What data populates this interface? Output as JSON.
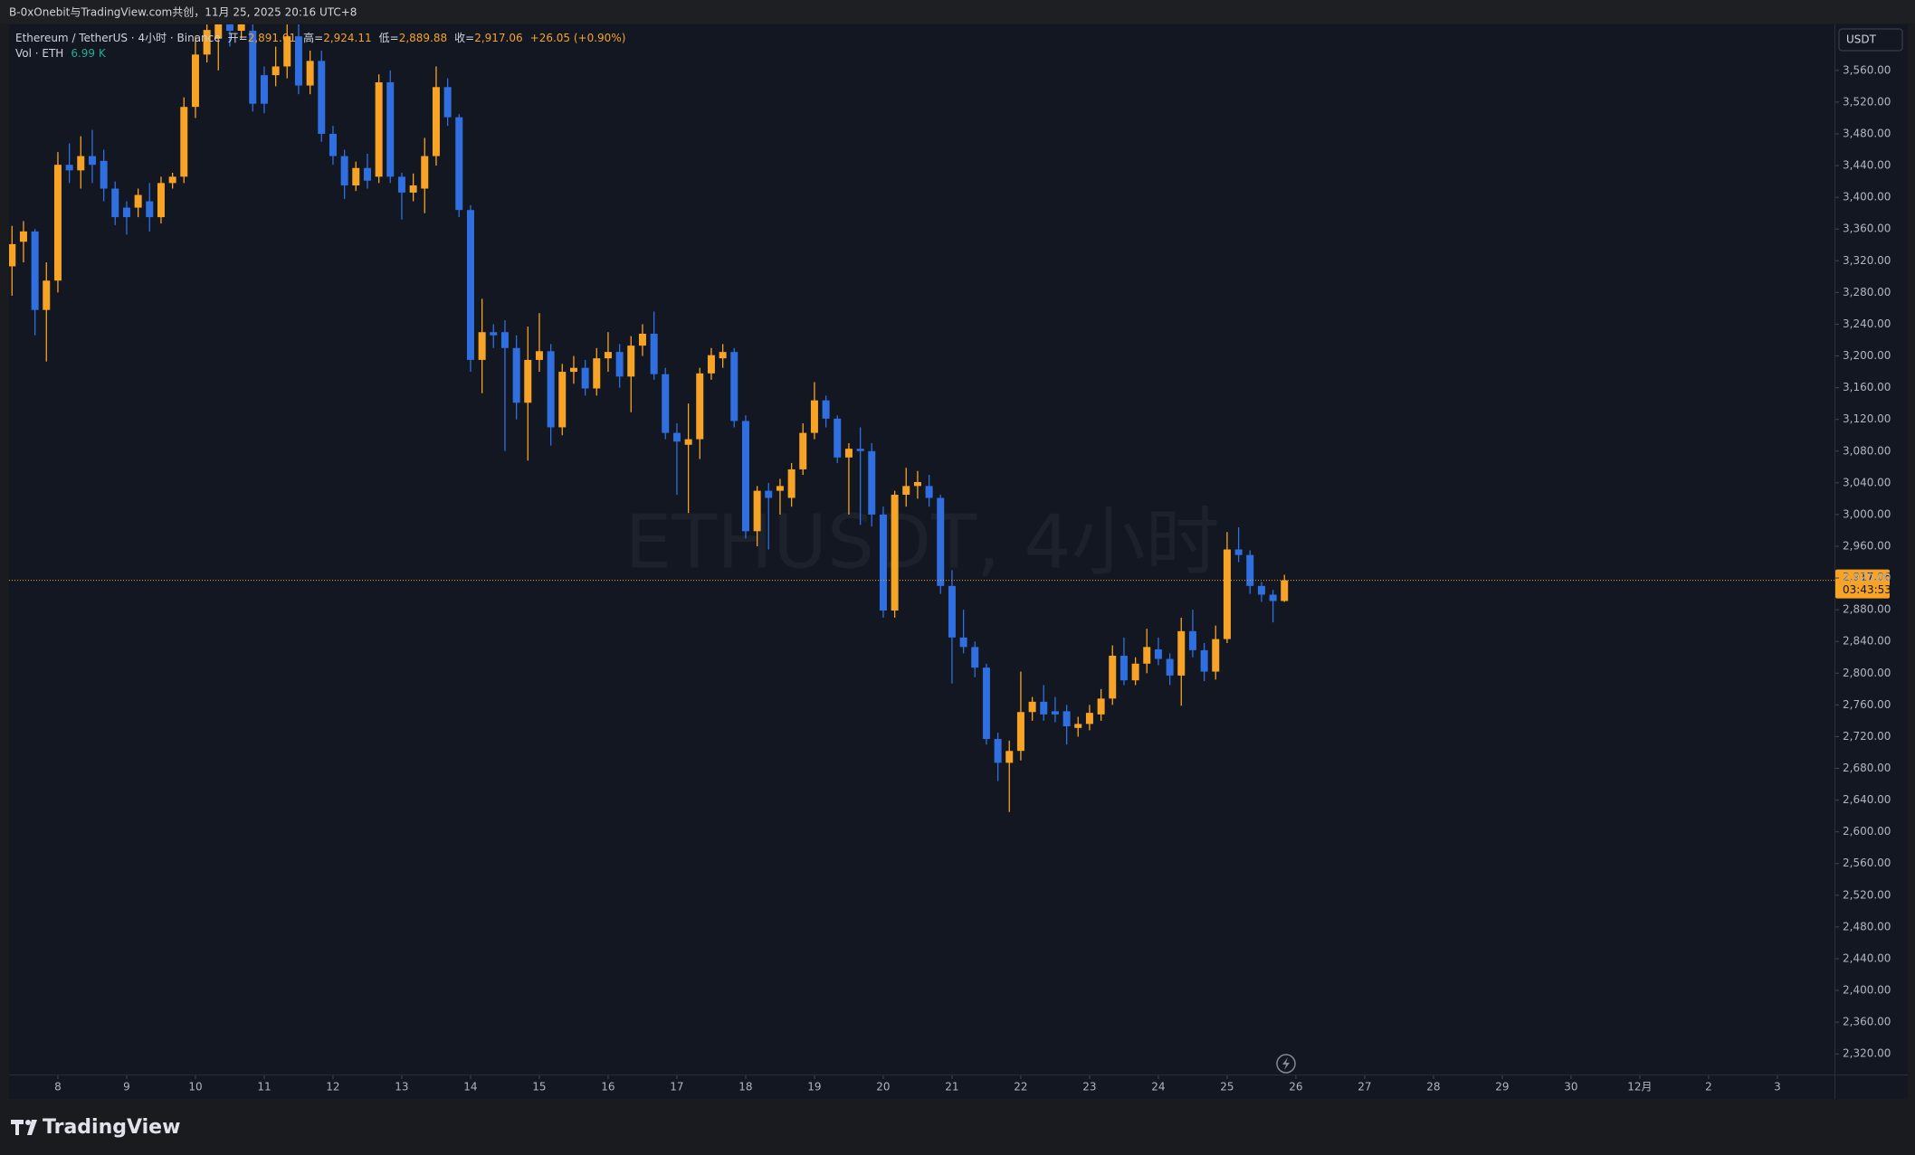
{
  "caption": "B-0xOnebit与TradingView.com共创，11月 25, 2025 20:16 UTC+8",
  "brand": "TradingView",
  "chart_data": {
    "type": "candlestick",
    "title": "Ethereum / TetherUS · 4小时 · Binance",
    "watermark": "ETHUSDT, 4小时",
    "legend": {
      "open_label": "开=",
      "open": "2,891.01",
      "high_label": "高=",
      "high": "2,924.11",
      "low_label": "低=",
      "low": "2,889.88",
      "close_label": "收=",
      "close": "2,917.06",
      "change": "+26.05 (+0.90%)"
    },
    "volume_label": "Vol · ETH",
    "volume": "6.99 K",
    "currency": "USDT",
    "up_color": "#f7a325",
    "down_color": "#2f6fe0",
    "grid": false,
    "last_price": {
      "value": 2917.06,
      "label": "2,917.06"
    },
    "countdown": "03:43:53",
    "x": [
      7.333,
      7.5,
      7.667,
      7.833,
      8,
      8.167,
      8.333,
      8.5,
      8.667,
      8.833,
      9,
      9.167,
      9.333,
      9.5,
      9.667,
      9.833,
      10,
      10.167,
      10.333,
      10.5,
      10.667,
      10.833,
      11,
      11.167,
      11.333,
      11.5,
      11.667,
      11.833,
      12,
      12.167,
      12.333,
      12.5,
      12.667,
      12.833,
      13,
      13.167,
      13.333,
      13.5,
      13.667,
      13.833,
      14,
      14.167,
      14.333,
      14.5,
      14.667,
      14.833,
      15,
      15.167,
      15.333,
      15.5,
      15.667,
      15.833,
      16,
      16.167,
      16.333,
      16.5,
      16.667,
      16.833,
      17,
      17.167,
      17.333,
      17.5,
      17.667,
      17.833,
      18,
      18.167,
      18.333,
      18.5,
      18.667,
      18.833,
      19,
      19.167,
      19.333,
      19.5,
      19.667,
      19.833,
      20,
      20.167,
      20.333,
      20.5,
      20.667,
      20.833,
      21,
      21.167,
      21.333,
      21.5,
      21.667,
      21.833,
      22,
      22.167,
      22.333,
      22.5,
      22.667,
      22.833,
      23,
      23.167,
      23.333,
      23.5,
      23.667,
      23.833,
      24,
      24.167,
      24.333,
      24.5,
      24.667,
      24.833,
      25,
      25.167,
      25.333,
      25.5,
      25.667,
      25.833
    ],
    "open": [
      3313,
      3344,
      3357,
      3258,
      3295,
      3441,
      3434,
      3452,
      3446,
      3411,
      3387,
      3387,
      3395,
      3375,
      3418,
      3426,
      3514,
      3580,
      3600,
      3625,
      3610,
      3610,
      3554,
      3554,
      3565,
      3603,
      3541,
      3572,
      3480,
      3452,
      3415,
      3437,
      3426,
      3545,
      3426,
      3406,
      3411,
      3452,
      3539,
      3501,
      3384,
      3195,
      3230,
      3230,
      3210,
      3141,
      3195,
      3206,
      3110,
      3180,
      3185,
      3159,
      3197,
      3205,
      3174,
      3213,
      3228,
      3177,
      3103,
      3088,
      3095,
      3178,
      3197,
      3205,
      3118,
      2979,
      3030,
      3030,
      3021,
      3057,
      3103,
      3144,
      3121,
      3072,
      3083,
      3080,
      3000,
      2879,
      3025,
      3036,
      3036,
      3021,
      2910,
      2845,
      2833,
      2807,
      2717,
      2687,
      2702,
      2751,
      2764,
      2752,
      2752,
      2731,
      2736,
      2748,
      2768,
      2822,
      2791,
      2812,
      2830,
      2818,
      2797,
      2853,
      2829,
      2802,
      2843,
      2956,
      2949,
      2910,
      2899,
      2891.01
    ],
    "high": [
      3364,
      3370,
      3360,
      3318,
      3457,
      3468,
      3477,
      3485,
      3460,
      3420,
      3395,
      3411,
      3418,
      3426,
      3431,
      3526,
      3603,
      3630,
      3640,
      3650,
      3660,
      3625,
      3565,
      3590,
      3620,
      3618,
      3585,
      3585,
      3490,
      3460,
      3445,
      3455,
      3555,
      3560,
      3431,
      3430,
      3475,
      3565,
      3550,
      3505,
      3390,
      3272,
      3240,
      3245,
      3226,
      3237,
      3254,
      3215,
      3190,
      3200,
      3195,
      3210,
      3230,
      3215,
      3225,
      3240,
      3256,
      3185,
      3115,
      3140,
      3185,
      3210,
      3215,
      3210,
      3125,
      3036,
      3040,
      3045,
      3065,
      3115,
      3167,
      3150,
      3125,
      3090,
      3110,
      3090,
      3010,
      3030,
      3059,
      3055,
      3050,
      3025,
      2930,
      2880,
      2840,
      2812,
      2725,
      2715,
      2802,
      2770,
      2785,
      2770,
      2760,
      2745,
      2760,
      2780,
      2835,
      2845,
      2820,
      2856,
      2845,
      2825,
      2870,
      2880,
      2838,
      2860,
      2978,
      2984,
      2955,
      2915,
      2905,
      2924.11
    ],
    "low": [
      3276,
      3318,
      3226,
      3193,
      3280,
      3418,
      3411,
      3418,
      3395,
      3365,
      3353,
      3375,
      3357,
      3367,
      3411,
      3418,
      3500,
      3570,
      3560,
      3590,
      3600,
      3508,
      3506,
      3540,
      3550,
      3530,
      3530,
      3470,
      3441,
      3398,
      3408,
      3411,
      3418,
      3418,
      3372,
      3395,
      3380,
      3440,
      3490,
      3375,
      3180,
      3153,
      3210,
      3080,
      3120,
      3068,
      3180,
      3087,
      3100,
      3165,
      3150,
      3150,
      3180,
      3160,
      3129,
      3200,
      3170,
      3095,
      3025,
      3002,
      3070,
      3170,
      3185,
      3110,
      2970,
      2960,
      2956,
      3000,
      3010,
      3050,
      3095,
      3110,
      3065,
      3000,
      2987,
      2985,
      2870,
      2870,
      3010,
      3020,
      3010,
      2900,
      2787,
      2825,
      2795,
      2710,
      2664,
      2625,
      2690,
      2740,
      2740,
      2738,
      2710,
      2720,
      2728,
      2740,
      2760,
      2785,
      2785,
      2800,
      2810,
      2785,
      2759,
      2820,
      2790,
      2792,
      2838,
      2940,
      2900,
      2890,
      2864,
      2889.88
    ],
    "close": [
      3341,
      3357,
      3258,
      3295,
      3441,
      3434,
      3452,
      3441,
      3411,
      3375,
      3375,
      3403,
      3375,
      3418,
      3426,
      3514,
      3580,
      3611,
      3625,
      3610,
      3630,
      3518,
      3518,
      3565,
      3603,
      3541,
      3572,
      3480,
      3452,
      3415,
      3437,
      3421,
      3545,
      3426,
      3406,
      3415,
      3452,
      3539,
      3501,
      3384,
      3195,
      3230,
      3226,
      3210,
      3141,
      3195,
      3206,
      3110,
      3180,
      3185,
      3159,
      3197,
      3205,
      3174,
      3213,
      3228,
      3177,
      3103,
      3092,
      3095,
      3178,
      3201,
      3205,
      3118,
      2979,
      3030,
      3021,
      3036,
      3057,
      3103,
      3144,
      3121,
      3072,
      3083,
      3080,
      3000,
      2879,
      3025,
      3036,
      3041,
      3021,
      2910,
      2845,
      2833,
      2807,
      2717,
      2687,
      2702,
      2751,
      2764,
      2748,
      2748,
      2733,
      2736,
      2750,
      2768,
      2822,
      2791,
      2812,
      2833,
      2818,
      2797,
      2853,
      2829,
      2802,
      2843,
      2956,
      2949,
      2910,
      2899,
      2891,
      2917.06
    ],
    "xlim": [
      7.29,
      33.83
    ],
    "xticks": [
      8,
      9,
      10,
      11,
      12,
      13,
      14,
      15,
      16,
      17,
      18,
      19,
      20,
      21,
      22,
      23,
      24,
      25,
      26,
      27,
      28,
      29,
      30,
      {
        "value": 31,
        "label": "12月"
      },
      {
        "value": 32,
        "label": "2"
      },
      {
        "value": 33,
        "label": "3"
      }
    ],
    "ylim": [
      2294,
      3618
    ],
    "yticks": [
      {
        "value": 2320,
        "label": "2,320.00"
      },
      {
        "value": 2360,
        "label": "2,360.00"
      },
      {
        "value": 2400,
        "label": "2,400.00"
      },
      {
        "value": 2440,
        "label": "2,440.00"
      },
      {
        "value": 2480,
        "label": "2,480.00"
      },
      {
        "value": 2520,
        "label": "2,520.00"
      },
      {
        "value": 2560,
        "label": "2,560.00"
      },
      {
        "value": 2600,
        "label": "2,600.00"
      },
      {
        "value": 2640,
        "label": "2,640.00"
      },
      {
        "value": 2680,
        "label": "2,680.00"
      },
      {
        "value": 2720,
        "label": "2,720.00"
      },
      {
        "value": 2760,
        "label": "2,760.00"
      },
      {
        "value": 2800,
        "label": "2,800.00"
      },
      {
        "value": 2840,
        "label": "2,840.00"
      },
      {
        "value": 2880,
        "label": "2,880.00"
      },
      {
        "value": 2920,
        "label": "2,920.00"
      },
      {
        "value": 2960,
        "label": "2,960.00"
      },
      {
        "value": 3000,
        "label": "3,000.00"
      },
      {
        "value": 3040,
        "label": "3,040.00"
      },
      {
        "value": 3080,
        "label": "3,080.00"
      },
      {
        "value": 3120,
        "label": "3,120.00"
      },
      {
        "value": 3160,
        "label": "3,160.00"
      },
      {
        "value": 3200,
        "label": "3,200.00"
      },
      {
        "value": 3240,
        "label": "3,240.00"
      },
      {
        "value": 3280,
        "label": "3,280.00"
      },
      {
        "value": 3320,
        "label": "3,320.00"
      },
      {
        "value": 3360,
        "label": "3,360.00"
      },
      {
        "value": 3400,
        "label": "3,400.00"
      },
      {
        "value": 3440,
        "label": "3,440.00"
      },
      {
        "value": 3480,
        "label": "3,480.00"
      },
      {
        "value": 3520,
        "label": "3,520.00"
      },
      {
        "value": 3560,
        "label": "3,560.00"
      }
    ]
  }
}
